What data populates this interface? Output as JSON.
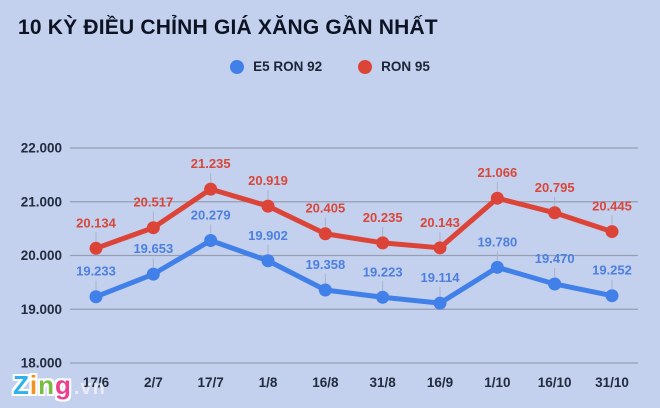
{
  "title": "10 KỲ ĐIỀU CHỈNH GIÁ XĂNG GẦN NHẤT",
  "watermark": {
    "letters": [
      {
        "ch": "Z",
        "color": "#2eb2e9"
      },
      {
        "ch": "i",
        "color": "#f6921e"
      },
      {
        "ch": "n",
        "color": "#79bd45"
      },
      {
        "ch": "g",
        "color": "#ee3f8e"
      }
    ],
    "suffix": ".vn"
  },
  "colors": {
    "background": "#c3d0ee",
    "gridline": "#969eb2",
    "axis_text": "#232c3e",
    "leader_line": "#a9b3c9"
  },
  "chart_data": {
    "type": "line",
    "title": "10 KỲ ĐIỀU CHỈNH GIÁ XĂNG GẦN NHẤT",
    "categories": [
      "17/6",
      "2/7",
      "17/7",
      "1/8",
      "16/8",
      "31/8",
      "16/9",
      "1/10",
      "16/10",
      "31/10"
    ],
    "series": [
      {
        "name": "E5 RON 92",
        "color": "#4180e8",
        "label_color": "#4d80de",
        "values": [
          19233,
          19653,
          20279,
          19902,
          19358,
          19223,
          19114,
          19780,
          19470,
          19252
        ],
        "labels": [
          "19.233",
          "19.653",
          "20.279",
          "19.902",
          "19.358",
          "19.223",
          "19.114",
          "19.780",
          "19.470",
          "19.252"
        ]
      },
      {
        "name": "RON 95",
        "color": "#dc4437",
        "label_color": "#d8473a",
        "values": [
          20134,
          20517,
          21235,
          20919,
          20405,
          20235,
          20143,
          21066,
          20795,
          20445
        ],
        "labels": [
          "20.134",
          "20.517",
          "21.235",
          "20.919",
          "20.405",
          "20.235",
          "20.143",
          "21.066",
          "20.795",
          "20.445"
        ]
      }
    ],
    "ylim": [
      18000,
      22000
    ],
    "y_ticks": [
      {
        "value": 22000,
        "label": "22.000"
      },
      {
        "value": 21000,
        "label": "21.000"
      },
      {
        "value": 20000,
        "label": "20.000"
      },
      {
        "value": 19000,
        "label": "19.000"
      },
      {
        "value": 18000,
        "label": "18.000"
      }
    ],
    "xlabel": "",
    "ylabel": "",
    "grid": true,
    "legend_position": "top"
  }
}
